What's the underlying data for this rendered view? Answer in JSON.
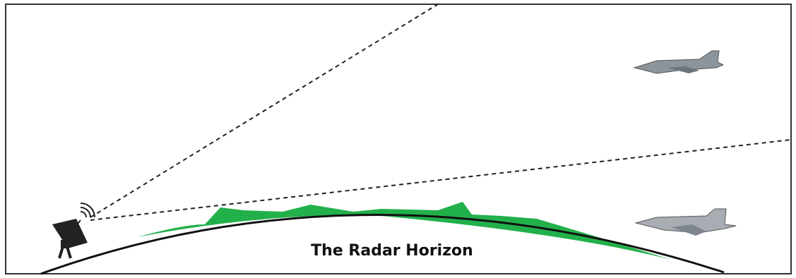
{
  "caption": "The Radar Horizon"
}
